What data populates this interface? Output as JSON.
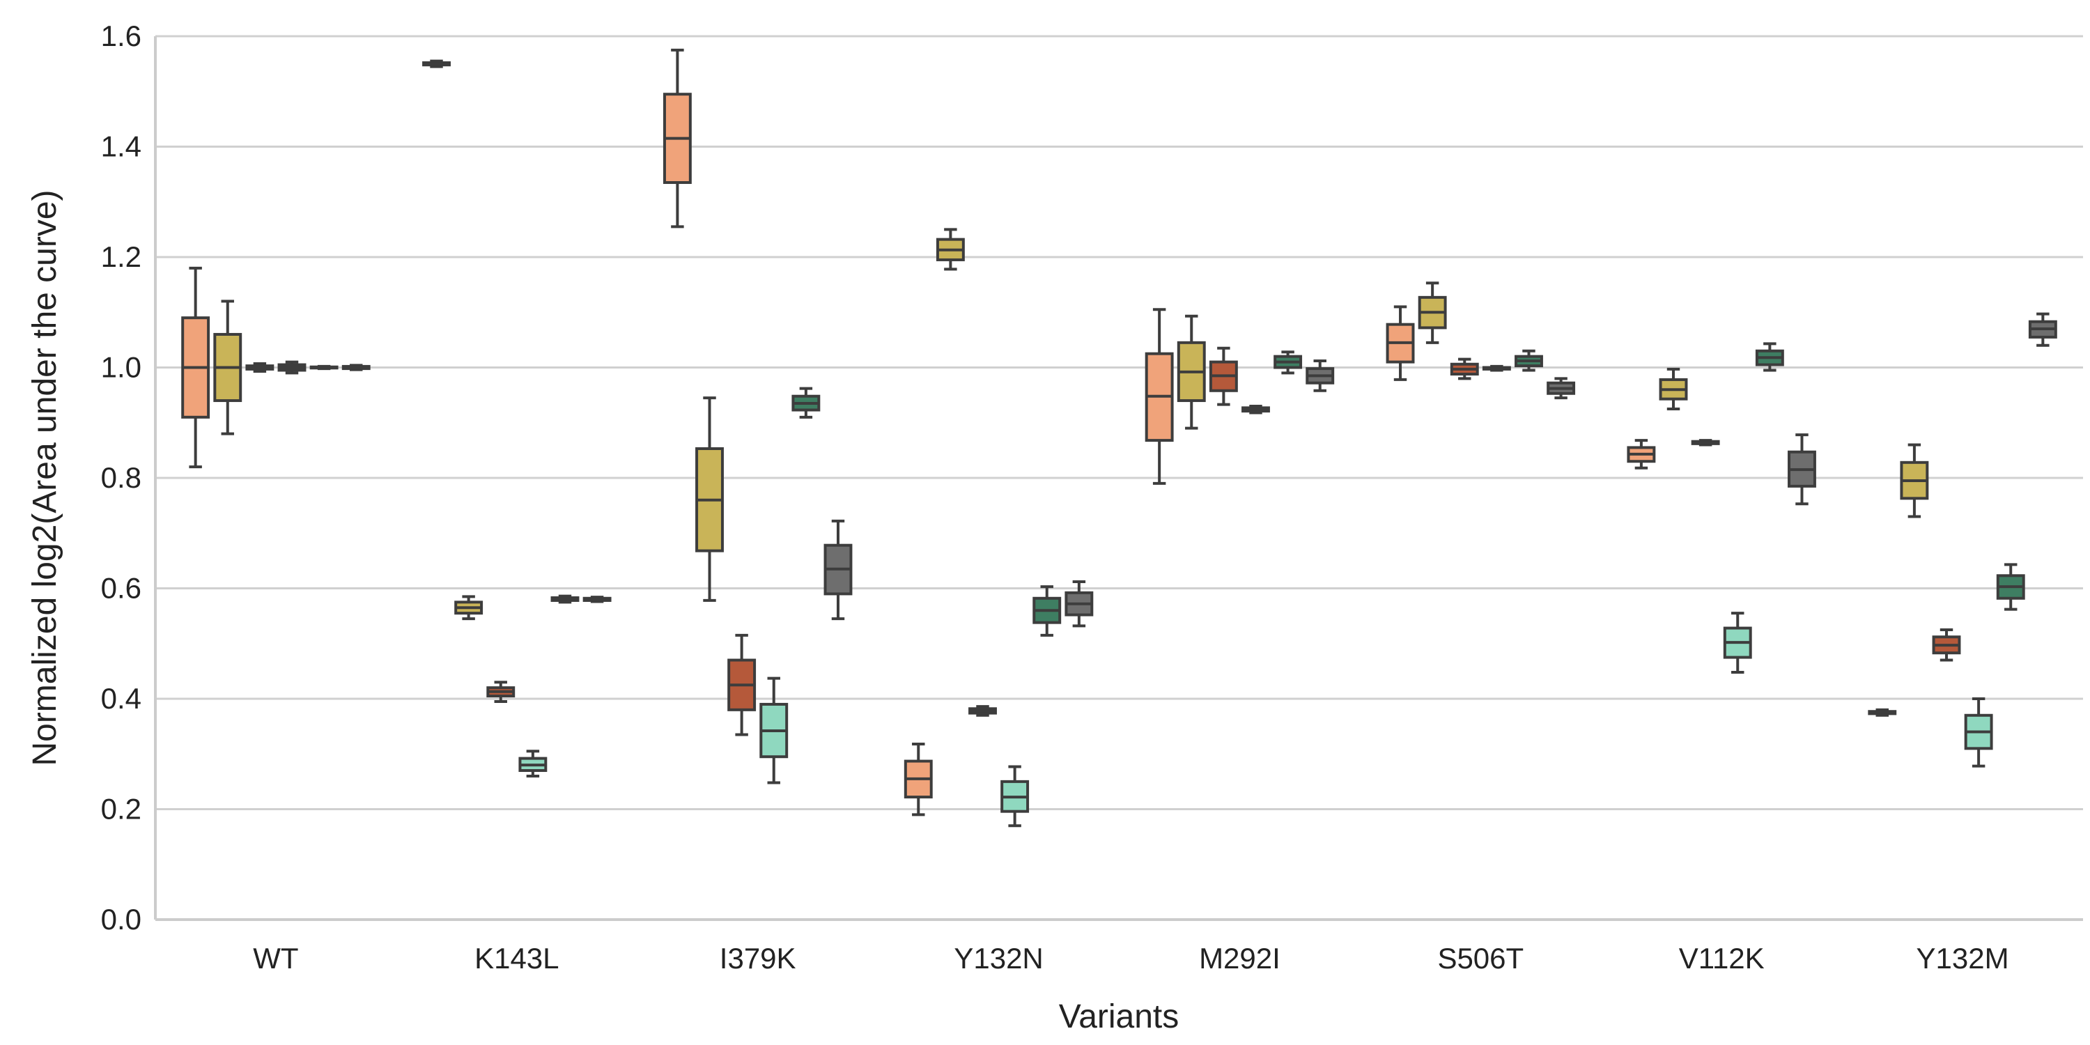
{
  "chart_data": {
    "type": "box",
    "xlabel": "Variants",
    "ylabel": "Normalized log2(Area under the curve)",
    "ylim": [
      0,
      1.6
    ],
    "yticks": [
      "0.0",
      "0.2",
      "0.4",
      "0.6",
      "0.8",
      "1.0",
      "1.2",
      "1.4",
      "1.6"
    ],
    "grid": "horizontal",
    "legend": "none",
    "categories": [
      "WT",
      "K143L",
      "I379K",
      "Y132N",
      "M292I",
      "S506T",
      "V112K",
      "Y132M"
    ],
    "hue_colors": [
      "#F0A37A",
      "#C9B458",
      "#B5593A",
      "#8FD8BF",
      "#3E7E62",
      "#6E6E6E"
    ],
    "boxes": [
      {
        "category": "WT",
        "hue": 0,
        "min": 0.82,
        "q1": 0.91,
        "median": 1.0,
        "q3": 1.09,
        "max": 1.18
      },
      {
        "category": "WT",
        "hue": 1,
        "min": 0.88,
        "q1": 0.94,
        "median": 1.0,
        "q3": 1.06,
        "max": 1.12
      },
      {
        "category": "WT",
        "hue": 2,
        "min": 0.993,
        "q1": 0.997,
        "median": 1.0,
        "q3": 1.003,
        "max": 1.007
      },
      {
        "category": "WT",
        "hue": 3,
        "min": 0.99,
        "q1": 0.995,
        "median": 1.0,
        "q3": 1.005,
        "max": 1.01
      },
      {
        "category": "WT",
        "hue": 4,
        "min": 0.998,
        "q1": 0.999,
        "median": 1.0,
        "q3": 1.001,
        "max": 1.002
      },
      {
        "category": "WT",
        "hue": 5,
        "min": 0.996,
        "q1": 0.998,
        "median": 1.0,
        "q3": 1.002,
        "max": 1.004
      },
      {
        "category": "K143L",
        "hue": 0,
        "min": 1.545,
        "q1": 1.548,
        "median": 1.55,
        "q3": 1.552,
        "max": 1.555
      },
      {
        "category": "K143L",
        "hue": 1,
        "min": 0.545,
        "q1": 0.555,
        "median": 0.565,
        "q3": 0.575,
        "max": 0.585
      },
      {
        "category": "K143L",
        "hue": 2,
        "min": 0.395,
        "q1": 0.405,
        "median": 0.413,
        "q3": 0.42,
        "max": 0.43
      },
      {
        "category": "K143L",
        "hue": 3,
        "min": 0.26,
        "q1": 0.27,
        "median": 0.28,
        "q3": 0.292,
        "max": 0.305
      },
      {
        "category": "K143L",
        "hue": 4,
        "min": 0.575,
        "q1": 0.578,
        "median": 0.58,
        "q3": 0.583,
        "max": 0.586
      },
      {
        "category": "K143L",
        "hue": 5,
        "min": 0.576,
        "q1": 0.578,
        "median": 0.58,
        "q3": 0.582,
        "max": 0.584
      },
      {
        "category": "I379K",
        "hue": 0,
        "min": 1.255,
        "q1": 1.335,
        "median": 1.415,
        "q3": 1.495,
        "max": 1.575
      },
      {
        "category": "I379K",
        "hue": 1,
        "min": 0.578,
        "q1": 0.668,
        "median": 0.76,
        "q3": 0.853,
        "max": 0.945
      },
      {
        "category": "I379K",
        "hue": 2,
        "min": 0.335,
        "q1": 0.38,
        "median": 0.425,
        "q3": 0.47,
        "max": 0.515
      },
      {
        "category": "I379K",
        "hue": 3,
        "min": 0.248,
        "q1": 0.295,
        "median": 0.342,
        "q3": 0.39,
        "max": 0.437
      },
      {
        "category": "I379K",
        "hue": 4,
        "min": 0.91,
        "q1": 0.923,
        "median": 0.935,
        "q3": 0.948,
        "max": 0.962
      },
      {
        "category": "I379K",
        "hue": 5,
        "min": 0.545,
        "q1": 0.59,
        "median": 0.635,
        "q3": 0.678,
        "max": 0.722
      },
      {
        "category": "Y132N",
        "hue": 0,
        "min": 0.19,
        "q1": 0.222,
        "median": 0.255,
        "q3": 0.287,
        "max": 0.318
      },
      {
        "category": "Y132N",
        "hue": 1,
        "min": 1.178,
        "q1": 1.195,
        "median": 1.213,
        "q3": 1.232,
        "max": 1.25
      },
      {
        "category": "Y132N",
        "hue": 2,
        "min": 0.37,
        "q1": 0.374,
        "median": 0.378,
        "q3": 0.382,
        "max": 0.386
      },
      {
        "category": "Y132N",
        "hue": 3,
        "min": 0.17,
        "q1": 0.196,
        "median": 0.222,
        "q3": 0.25,
        "max": 0.277
      },
      {
        "category": "Y132N",
        "hue": 4,
        "min": 0.515,
        "q1": 0.538,
        "median": 0.56,
        "q3": 0.582,
        "max": 0.603
      },
      {
        "category": "Y132N",
        "hue": 5,
        "min": 0.532,
        "q1": 0.552,
        "median": 0.572,
        "q3": 0.592,
        "max": 0.612
      },
      {
        "category": "M292I",
        "hue": 0,
        "min": 0.79,
        "q1": 0.868,
        "median": 0.948,
        "q3": 1.025,
        "max": 1.105
      },
      {
        "category": "M292I",
        "hue": 1,
        "min": 0.89,
        "q1": 0.94,
        "median": 0.992,
        "q3": 1.045,
        "max": 1.093
      },
      {
        "category": "M292I",
        "hue": 2,
        "min": 0.933,
        "q1": 0.958,
        "median": 0.985,
        "q3": 1.01,
        "max": 1.035
      },
      {
        "category": "M292I",
        "hue": 3,
        "min": 0.918,
        "q1": 0.921,
        "median": 0.924,
        "q3": 0.927,
        "max": 0.93
      },
      {
        "category": "M292I",
        "hue": 4,
        "min": 0.99,
        "q1": 1.0,
        "median": 1.01,
        "q3": 1.02,
        "max": 1.028
      },
      {
        "category": "M292I",
        "hue": 5,
        "min": 0.958,
        "q1": 0.972,
        "median": 0.985,
        "q3": 0.998,
        "max": 1.012
      },
      {
        "category": "S506T",
        "hue": 0,
        "min": 0.978,
        "q1": 1.01,
        "median": 1.045,
        "q3": 1.078,
        "max": 1.11
      },
      {
        "category": "S506T",
        "hue": 1,
        "min": 1.045,
        "q1": 1.072,
        "median": 1.1,
        "q3": 1.127,
        "max": 1.153
      },
      {
        "category": "S506T",
        "hue": 2,
        "min": 0.98,
        "q1": 0.988,
        "median": 0.997,
        "q3": 1.006,
        "max": 1.015
      },
      {
        "category": "S506T",
        "hue": 3,
        "min": 0.995,
        "q1": 0.997,
        "median": 0.998,
        "q3": 1.0,
        "max": 1.002
      },
      {
        "category": "S506T",
        "hue": 4,
        "min": 0.995,
        "q1": 1.003,
        "median": 1.012,
        "q3": 1.02,
        "max": 1.03
      },
      {
        "category": "S506T",
        "hue": 5,
        "min": 0.945,
        "q1": 0.953,
        "median": 0.962,
        "q3": 0.972,
        "max": 0.98
      },
      {
        "category": "V112K",
        "hue": 0,
        "min": 0.818,
        "q1": 0.83,
        "median": 0.843,
        "q3": 0.855,
        "max": 0.868
      },
      {
        "category": "V112K",
        "hue": 1,
        "min": 0.925,
        "q1": 0.943,
        "median": 0.96,
        "q3": 0.978,
        "max": 0.997
      },
      {
        "category": "V112K",
        "hue": 2,
        "min": 0.86,
        "q1": 0.862,
        "median": 0.864,
        "q3": 0.866,
        "max": 0.868
      },
      {
        "category": "V112K",
        "hue": 3,
        "min": 0.448,
        "q1": 0.475,
        "median": 0.502,
        "q3": 0.528,
        "max": 0.555
      },
      {
        "category": "V112K",
        "hue": 4,
        "min": 0.995,
        "q1": 1.005,
        "median": 1.018,
        "q3": 1.03,
        "max": 1.043
      },
      {
        "category": "V112K",
        "hue": 5,
        "min": 0.753,
        "q1": 0.785,
        "median": 0.815,
        "q3": 0.847,
        "max": 0.878
      },
      {
        "category": "Y132M",
        "hue": 0,
        "min": 0.37,
        "q1": 0.373,
        "median": 0.375,
        "q3": 0.377,
        "max": 0.38
      },
      {
        "category": "Y132M",
        "hue": 1,
        "min": 0.73,
        "q1": 0.763,
        "median": 0.795,
        "q3": 0.828,
        "max": 0.86
      },
      {
        "category": "Y132M",
        "hue": 2,
        "min": 0.47,
        "q1": 0.483,
        "median": 0.497,
        "q3": 0.512,
        "max": 0.525
      },
      {
        "category": "Y132M",
        "hue": 3,
        "min": 0.278,
        "q1": 0.31,
        "median": 0.34,
        "q3": 0.37,
        "max": 0.4
      },
      {
        "category": "Y132M",
        "hue": 4,
        "min": 0.562,
        "q1": 0.582,
        "median": 0.603,
        "q3": 0.623,
        "max": 0.643
      },
      {
        "category": "Y132M",
        "hue": 5,
        "min": 1.04,
        "q1": 1.055,
        "median": 1.07,
        "q3": 1.083,
        "max": 1.097
      }
    ]
  }
}
